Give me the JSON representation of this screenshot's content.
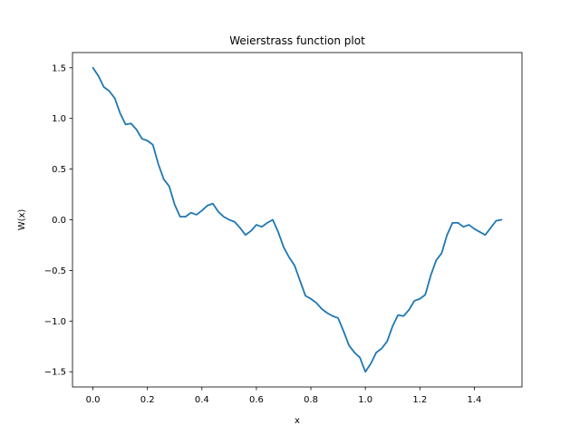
{
  "chart_data": {
    "type": "line",
    "title": "Weierstrass function plot",
    "xlabel": "x",
    "ylabel": "W(x)",
    "xlim": [
      -0.075,
      1.575
    ],
    "ylim": [
      -1.65,
      1.65
    ],
    "x_ticks": [
      0.0,
      0.2,
      0.4,
      0.6,
      0.8,
      1.0,
      1.2,
      1.4
    ],
    "x_tick_labels": [
      "0.0",
      "0.2",
      "0.4",
      "0.6",
      "0.8",
      "1.0",
      "1.2",
      "1.4"
    ],
    "y_ticks": [
      1.5,
      1.0,
      0.5,
      0.0,
      -0.5,
      -1.0,
      -1.5
    ],
    "y_tick_labels": [
      "1.5",
      "1.0",
      "0.5",
      "0.0",
      "−0.5",
      "−1.0",
      "−1.5"
    ],
    "grid": false,
    "series": [
      {
        "color": "#1f77b4",
        "x": [
          0.0,
          0.02,
          0.04,
          0.06,
          0.08,
          0.1,
          0.12,
          0.14,
          0.16,
          0.18,
          0.2,
          0.22,
          0.24,
          0.26,
          0.28,
          0.3,
          0.32,
          0.34,
          0.36,
          0.38,
          0.4,
          0.42,
          0.44,
          0.46,
          0.48,
          0.5,
          0.52,
          0.54,
          0.56,
          0.58,
          0.6,
          0.62,
          0.64,
          0.66,
          0.68,
          0.7,
          0.72,
          0.74,
          0.76,
          0.78,
          0.8,
          0.82,
          0.84,
          0.86,
          0.88,
          0.9,
          0.92,
          0.94,
          0.96,
          0.98,
          1.0,
          1.02,
          1.04,
          1.06,
          1.08,
          1.1,
          1.12,
          1.14,
          1.16,
          1.18,
          1.2,
          1.22,
          1.24,
          1.26,
          1.28,
          1.3,
          1.32,
          1.34,
          1.36,
          1.38,
          1.4,
          1.42,
          1.44,
          1.46,
          1.48,
          1.5
        ],
        "y": [
          1.5,
          1.42,
          1.31,
          1.27,
          1.2,
          1.05,
          0.94,
          0.95,
          0.89,
          0.8,
          0.78,
          0.74,
          0.55,
          0.4,
          0.33,
          0.15,
          0.03,
          0.03,
          0.07,
          0.05,
          0.09,
          0.14,
          0.16,
          0.08,
          0.03,
          0.0,
          -0.02,
          -0.08,
          -0.15,
          -0.11,
          -0.05,
          -0.07,
          -0.03,
          0.0,
          -0.12,
          -0.27,
          -0.37,
          -0.45,
          -0.6,
          -0.75,
          -0.78,
          -0.82,
          -0.88,
          -0.92,
          -0.95,
          -0.97,
          -1.1,
          -1.24,
          -1.31,
          -1.36,
          -1.5,
          -1.42,
          -1.31,
          -1.27,
          -1.2,
          -1.05,
          -0.94,
          -0.95,
          -0.89,
          -0.8,
          -0.78,
          -0.74,
          -0.55,
          -0.4,
          -0.33,
          -0.15,
          -0.03,
          -0.03,
          -0.07,
          -0.05,
          -0.09,
          -0.12,
          -0.15,
          -0.08,
          -0.01,
          0.0
        ]
      }
    ]
  }
}
